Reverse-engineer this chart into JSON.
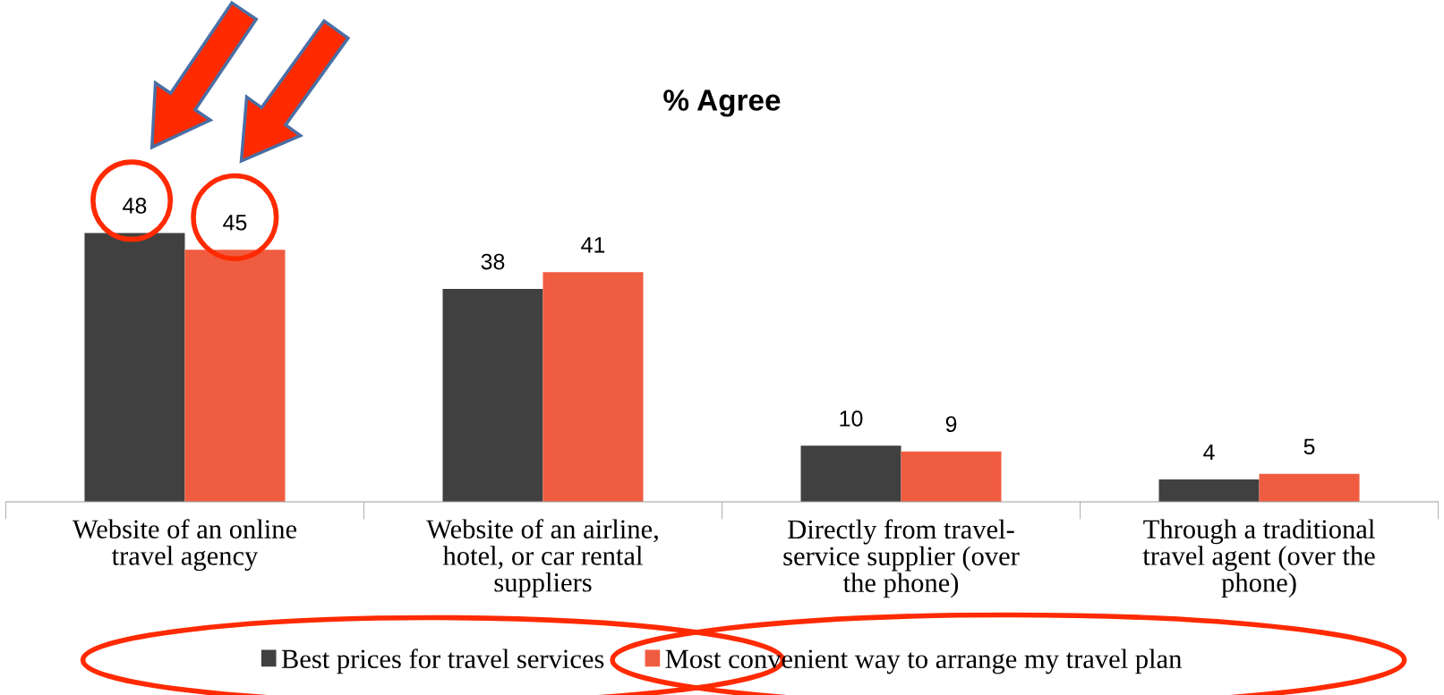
{
  "chart_data": {
    "type": "bar",
    "title": "% Agree",
    "categories": [
      "Website of an online\ntravel agency",
      "Website of an airline,\nhotel, or car rental\nsuppliers",
      "Directly from travel-\nservice supplier (over\nthe phone)",
      "Through a traditional\ntravel agent (over the\nphone)"
    ],
    "series": [
      {
        "name": "Best prices for travel services",
        "color": "#404040",
        "values": [
          48,
          38,
          10,
          4
        ]
      },
      {
        "name": "Most convenient way to arrange my travel plan",
        "color": "#f05c40",
        "values": [
          45,
          41,
          9,
          5
        ]
      }
    ],
    "data_labels": true,
    "legend": "bottom",
    "grid": false,
    "tick_labels": "x"
  }
}
